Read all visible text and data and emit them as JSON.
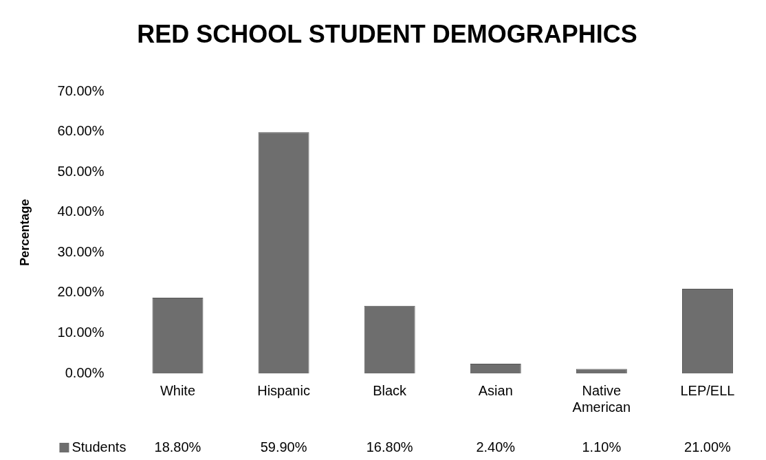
{
  "chart_data": {
    "type": "bar",
    "title": "RED SCHOOL STUDENT DEMOGRAPHICS",
    "ylabel": "Percentage",
    "categories": [
      "White",
      "Hispanic",
      "Black",
      "Asian",
      "Native American",
      "LEP/ELL"
    ],
    "series": [
      {
        "name": "Students",
        "color": "#6e6e6e",
        "values": [
          18.8,
          59.9,
          16.8,
          2.4,
          1.1,
          21.0
        ],
        "value_labels": [
          "18.80%",
          "59.90%",
          "16.80%",
          "2.40%",
          "1.10%",
          "21.00%"
        ]
      }
    ],
    "ylim": [
      0,
      70
    ],
    "yticks": [
      {
        "value": 0,
        "label": "0.00%"
      },
      {
        "value": 10,
        "label": "10.00%"
      },
      {
        "value": 20,
        "label": "20.00%"
      },
      {
        "value": 30,
        "label": "30.00%"
      },
      {
        "value": 40,
        "label": "40.00%"
      },
      {
        "value": 50,
        "label": "50.00%"
      },
      {
        "value": 60,
        "label": "60.00%"
      },
      {
        "value": 70,
        "label": "70.00%"
      }
    ],
    "grid": false,
    "legend": "bottom"
  }
}
